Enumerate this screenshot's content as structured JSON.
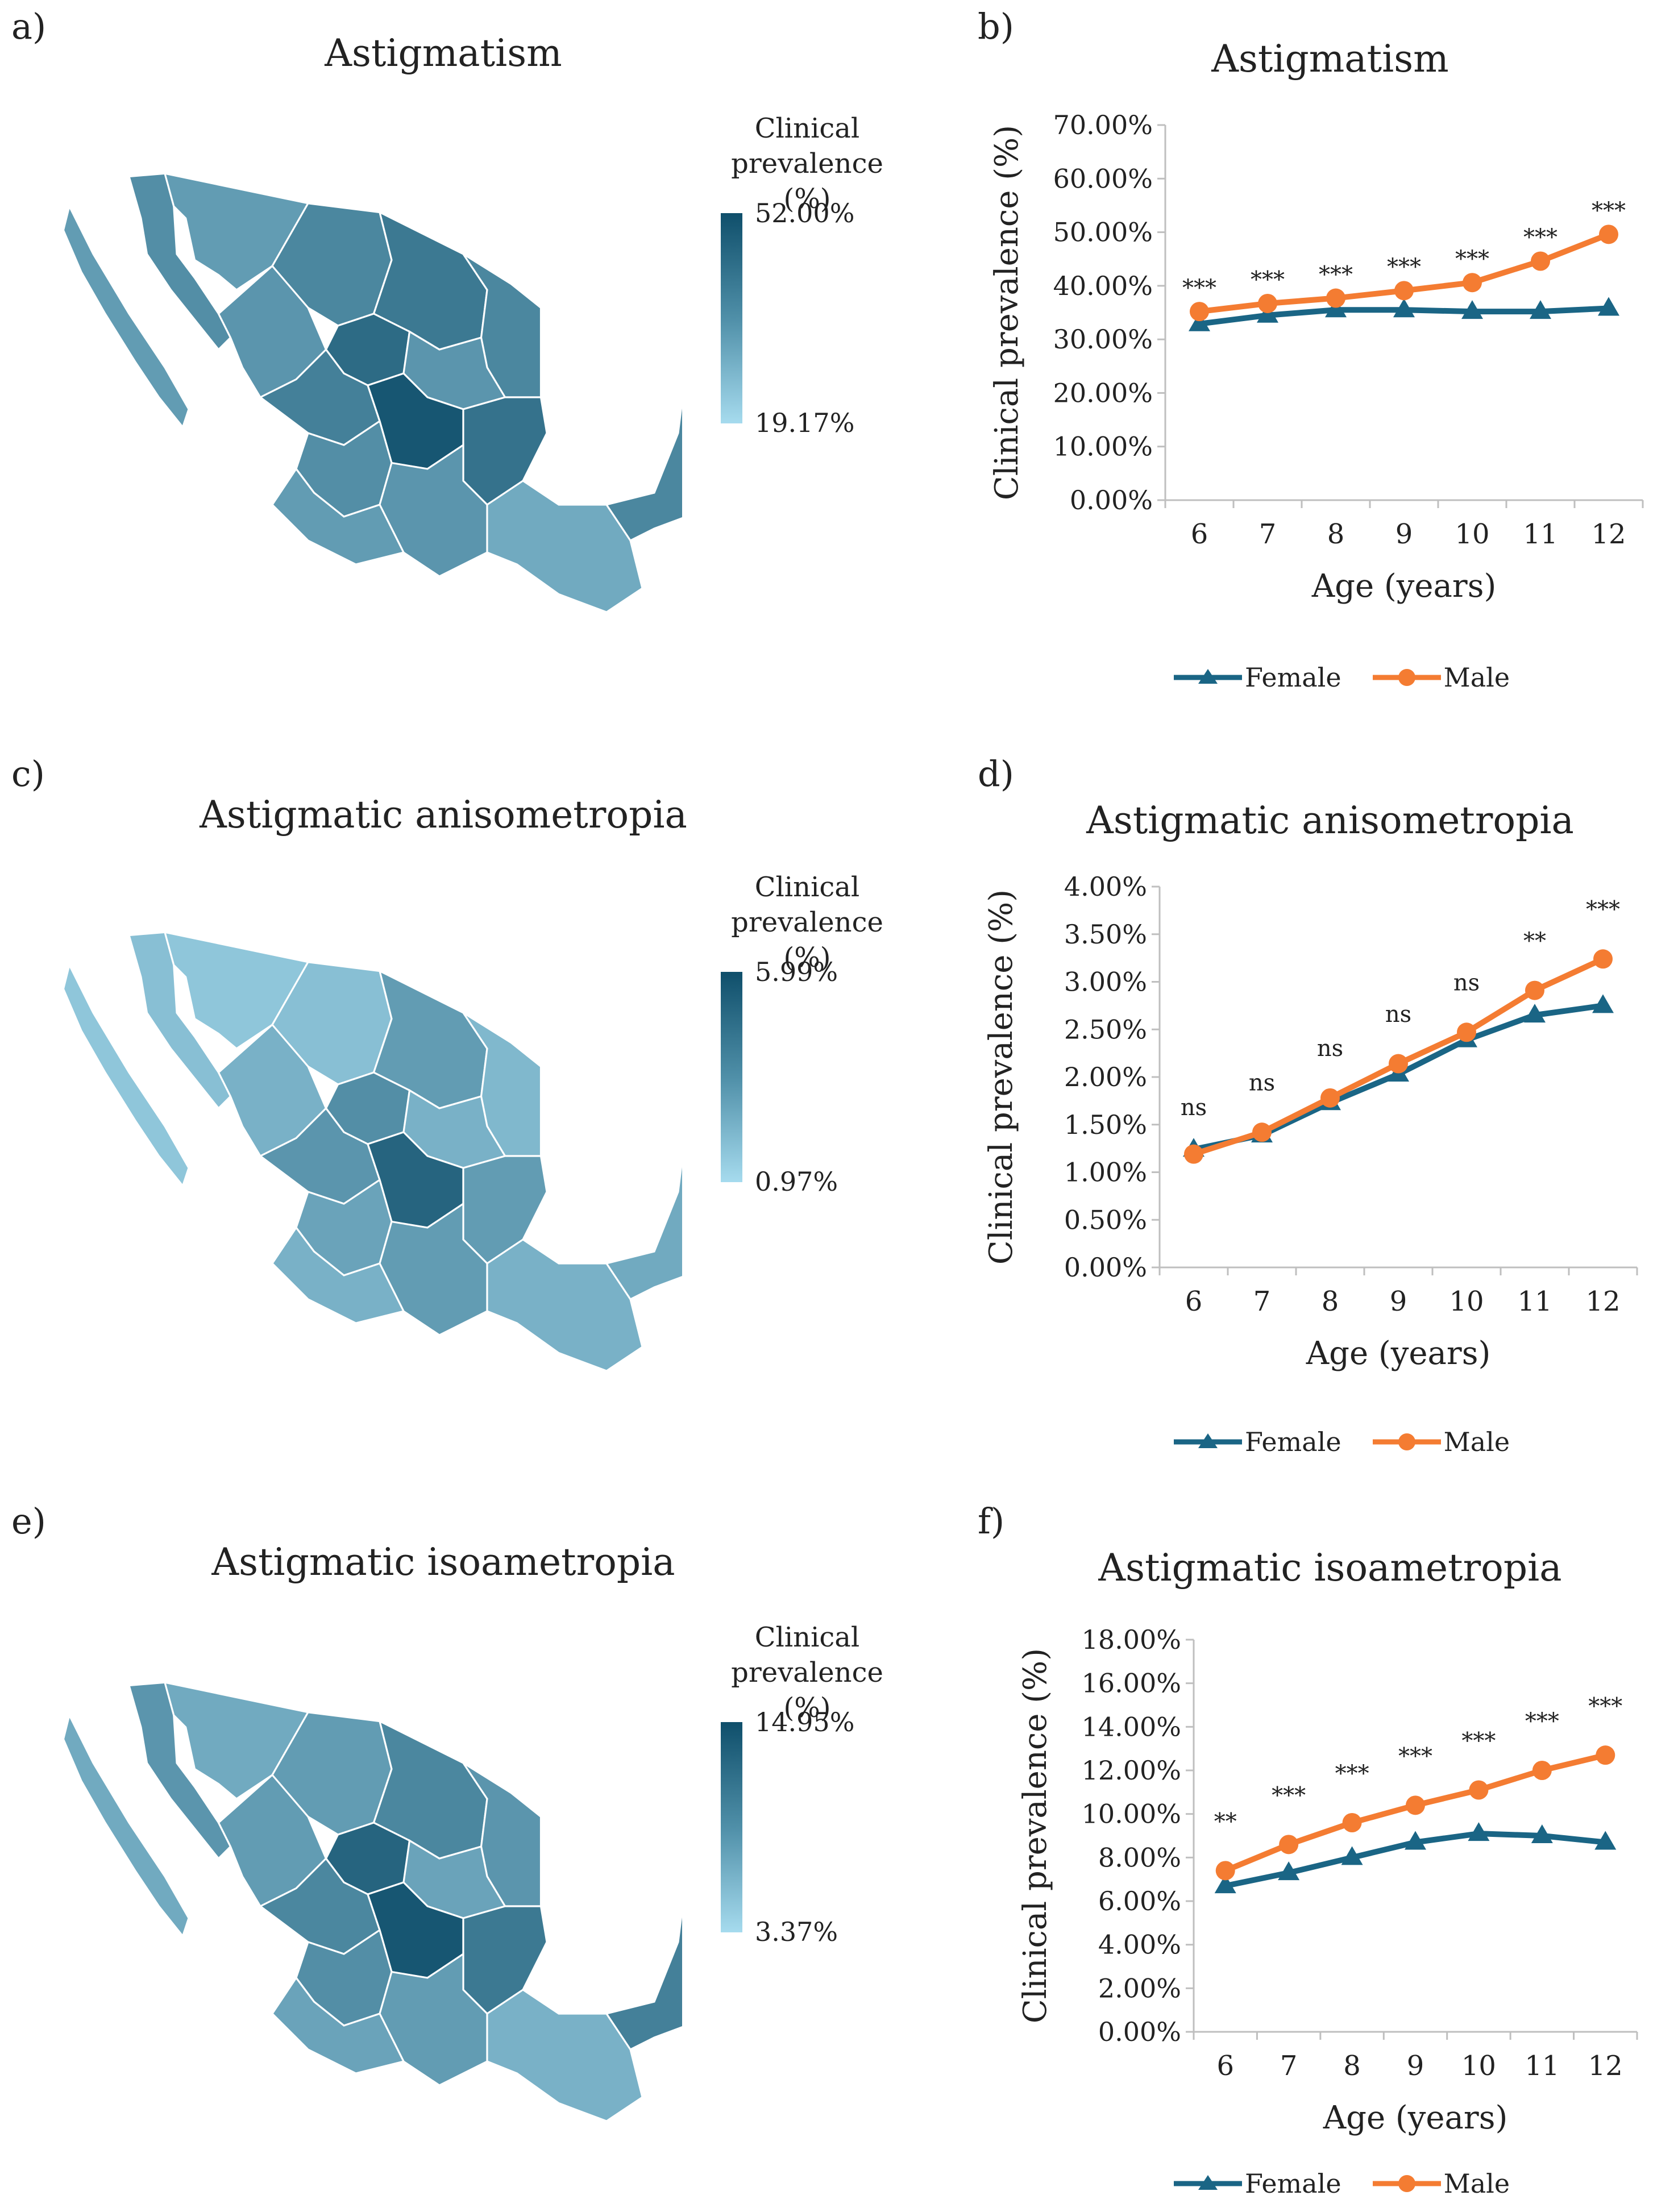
{
  "colors": {
    "female": "#1a6585",
    "male": "#f47c32",
    "axis": "#bfbfbf",
    "grid": "#d9d9d9",
    "map_dark": "#0f4f6b",
    "map_light": "#a6dbee",
    "map_border": "#ffffff"
  },
  "legend": {
    "head_line1": "Clinical",
    "head_line2": "prevalence (%)",
    "female": "Female",
    "male": "Male"
  },
  "maps": [
    {
      "label": "a)",
      "title": "Astigmatism",
      "max": "52.00%",
      "min": "19.17%",
      "region_levels": [
        0.55,
        0.45,
        0.6,
        0.7,
        0.6,
        0.5,
        0.8,
        0.5,
        0.65,
        0.95,
        0.75,
        0.55,
        0.5,
        0.35,
        0.6,
        0.45
      ]
    },
    {
      "label": "c)",
      "title": "Astigmatic anisometropia",
      "max": "5.99%",
      "min": "0.97%",
      "region_levels": [
        0.2,
        0.15,
        0.2,
        0.45,
        0.25,
        0.3,
        0.55,
        0.3,
        0.5,
        0.85,
        0.45,
        0.4,
        0.45,
        0.3,
        0.35,
        0.3
      ]
    },
    {
      "label": "e)",
      "title": "Astigmatic isoametropia",
      "max": "14.95%",
      "min": "3.37%",
      "region_levels": [
        0.5,
        0.35,
        0.45,
        0.6,
        0.5,
        0.45,
        0.85,
        0.4,
        0.6,
        0.95,
        0.7,
        0.55,
        0.45,
        0.3,
        0.65,
        0.4
      ]
    }
  ],
  "chart_data": [
    {
      "label": "b)",
      "type": "line",
      "title": "Astigmatism",
      "xlabel": "Age (years)",
      "ylabel": "Clinical prevalence (%)",
      "categories": [
        "6",
        "7",
        "8",
        "9",
        "10",
        "11",
        "12"
      ],
      "ylim": [
        0,
        70
      ],
      "ystep": 10,
      "ytick_labels": [
        "0.00%",
        "10.00%",
        "20.00%",
        "30.00%",
        "40.00%",
        "50.00%",
        "60.00%",
        "70.00%"
      ],
      "series": [
        {
          "name": "Female",
          "marker": "triangle",
          "values": [
            32.9,
            34.5,
            35.5,
            35.5,
            35.2,
            35.2,
            35.8
          ]
        },
        {
          "name": "Male",
          "marker": "circle",
          "values": [
            35.2,
            36.7,
            37.7,
            39.1,
            40.6,
            44.6,
            49.6
          ]
        }
      ],
      "annotations": [
        "***",
        "***",
        "***",
        "***",
        "***",
        "***",
        "***"
      ],
      "annotation_base": [
        38.2,
        39.7,
        40.7,
        42.1,
        43.6,
        47.6,
        52.6
      ],
      "legend_position": "bottom"
    },
    {
      "label": "d)",
      "type": "line",
      "title": "Astigmatic anisometropia",
      "xlabel": "Age (years)",
      "ylabel": "Clinical prevalence (%)",
      "categories": [
        "6",
        "7",
        "8",
        "9",
        "10",
        "11",
        "12"
      ],
      "ylim": [
        0,
        4
      ],
      "ystep": 0.5,
      "ytick_labels": [
        "0.00%",
        "0.50%",
        "1.00%",
        "1.50%",
        "2.00%",
        "2.50%",
        "3.00%",
        "3.50%",
        "4.00%"
      ],
      "series": [
        {
          "name": "Female",
          "marker": "triangle",
          "values": [
            1.24,
            1.39,
            1.73,
            2.03,
            2.39,
            2.65,
            2.75
          ]
        },
        {
          "name": "Male",
          "marker": "circle",
          "values": [
            1.19,
            1.42,
            1.78,
            2.14,
            2.47,
            2.91,
            3.24
          ]
        }
      ],
      "annotations": [
        "ns",
        "ns",
        "ns",
        "ns",
        "ns",
        "**",
        "***"
      ],
      "annotation_base": [
        1.6,
        1.86,
        2.22,
        2.58,
        2.91,
        3.35,
        3.68
      ],
      "legend_position": "bottom"
    },
    {
      "label": "f)",
      "type": "line",
      "title": "Astigmatic isoametropia",
      "xlabel": "Age (years)",
      "ylabel": "Clinical prevalence (%)",
      "categories": [
        "6",
        "7",
        "8",
        "9",
        "10",
        "11",
        "12"
      ],
      "ylim": [
        0,
        18
      ],
      "ystep": 2,
      "ytick_labels": [
        "0.00%",
        "2.00%",
        "4.00%",
        "6.00%",
        "8.00%",
        "10.00%",
        "12.00%",
        "14.00%",
        "16.00%",
        "18.00%"
      ],
      "series": [
        {
          "name": "Female",
          "marker": "triangle",
          "values": [
            6.7,
            7.3,
            8.0,
            8.7,
            9.1,
            9.0,
            8.7
          ]
        },
        {
          "name": "Male",
          "marker": "circle",
          "values": [
            7.4,
            8.6,
            9.6,
            10.4,
            11.1,
            12.0,
            12.7
          ]
        }
      ],
      "annotations": [
        "**",
        "***",
        "***",
        "***",
        "***",
        "***",
        "***"
      ],
      "annotation_base": [
        9.3,
        10.5,
        11.5,
        12.3,
        13.0,
        13.9,
        14.6
      ],
      "legend_position": "bottom"
    }
  ]
}
